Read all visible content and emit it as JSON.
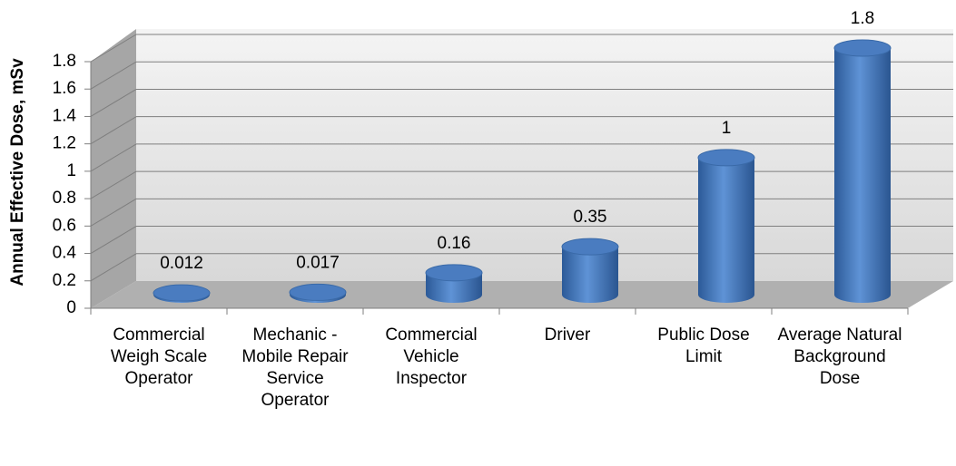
{
  "chart_data": {
    "type": "bar3d",
    "y_axis_label": "Annual Effective Dose, mSv",
    "categories": [
      "Commercial Weigh Scale Operator",
      "Mechanic - Mobile Repair Service Operator",
      "Commercial Vehicle Inspector",
      "Driver",
      "Public Dose Limit",
      "Average Natural Background Dose"
    ],
    "values": [
      0.012,
      0.017,
      0.16,
      0.35,
      1,
      1.8
    ],
    "color": "#4a7cc0",
    "ylim": [
      0,
      1.8
    ],
    "yticks": [
      0,
      0.2,
      0.4,
      0.6,
      0.8,
      1,
      1.2,
      1.4,
      1.6,
      1.8
    ],
    "grid": true
  }
}
